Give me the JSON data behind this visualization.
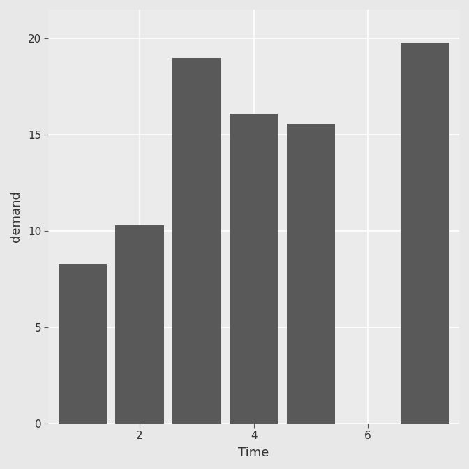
{
  "x_positions": [
    1,
    2,
    3,
    4,
    5,
    7
  ],
  "heights": [
    8.3,
    10.3,
    19.0,
    16.1,
    15.6,
    19.8
  ],
  "bar_color": "#595959",
  "bar_width": 0.85,
  "xlim": [
    0.4,
    7.6
  ],
  "ylim": [
    0,
    21.5
  ],
  "xticks": [
    2,
    4,
    6
  ],
  "yticks": [
    0,
    5,
    10,
    15,
    20
  ],
  "xlabel": "Time",
  "ylabel": "demand",
  "bg_plot": "#ebebeb",
  "bg_figure": "#e8e8e8",
  "grid_color": "#ffffff",
  "xlabel_fontsize": 13,
  "ylabel_fontsize": 13,
  "tick_fontsize": 11
}
